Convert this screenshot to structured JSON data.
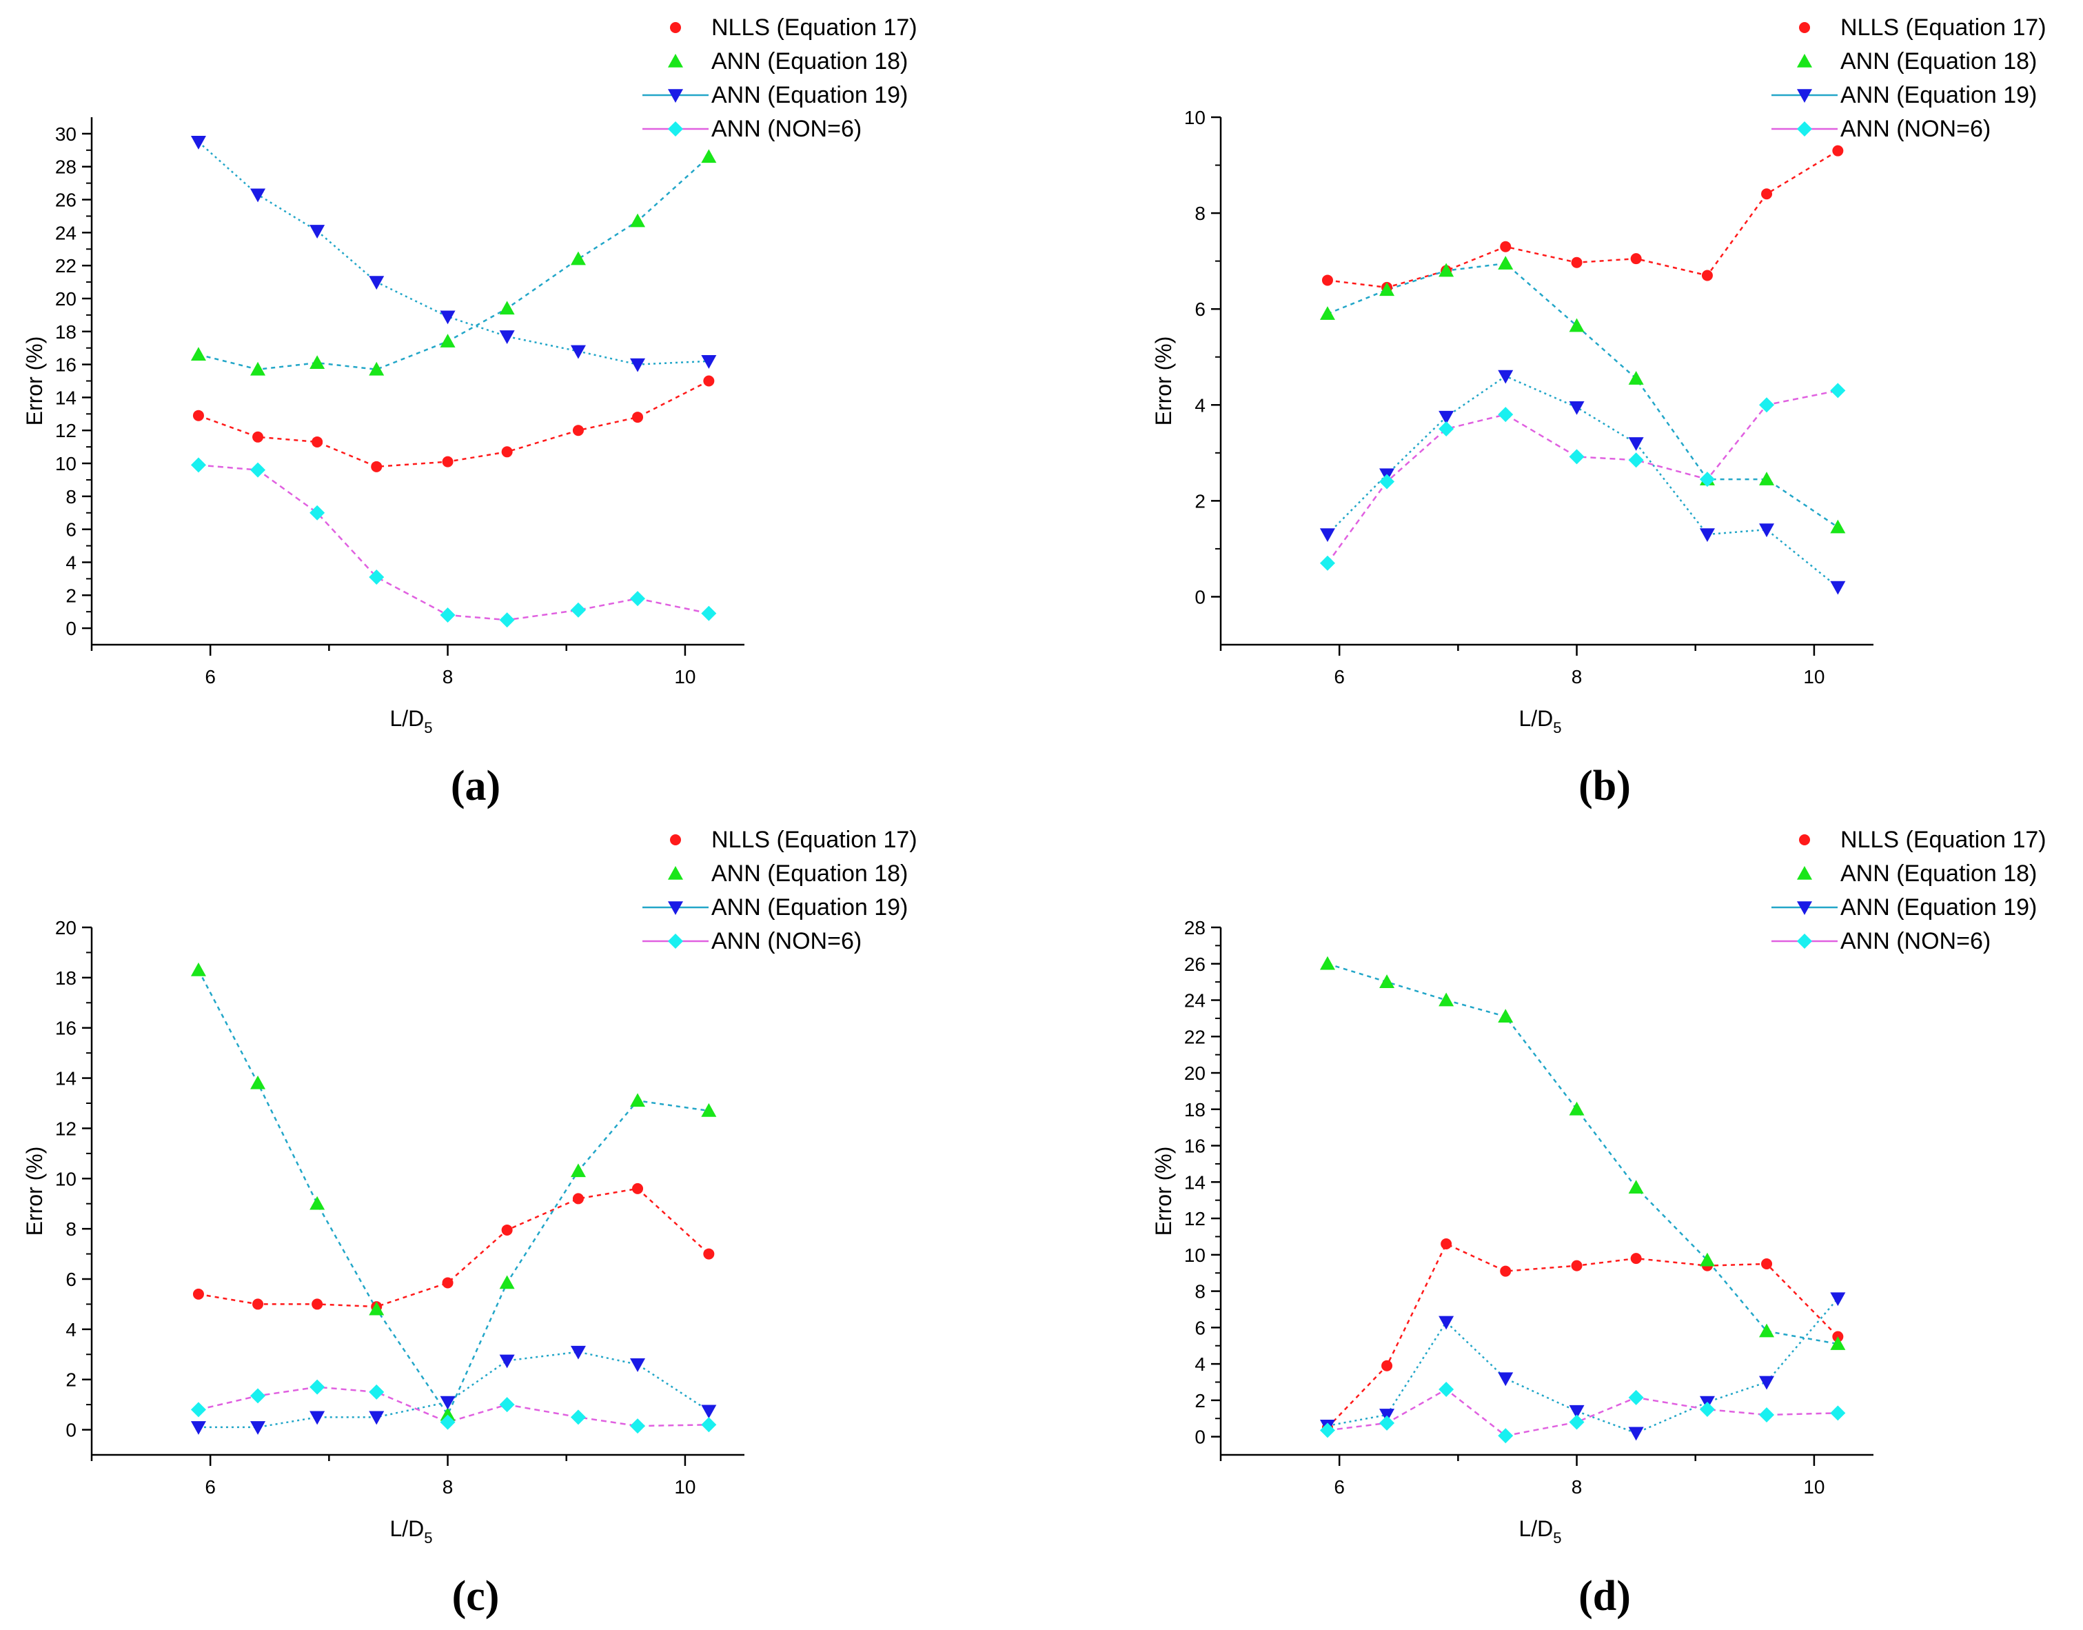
{
  "colors": {
    "nlls": "#ff1a1a",
    "ann18": "#19e619",
    "ann19": "#1a1ae6",
    "non6": "#19f0f0",
    "line_ann18_19": "#22a6c8",
    "line_non6": "#e060e0",
    "axis": "#000000"
  },
  "legend_labels": [
    "NLLS (Equation 17)",
    "ANN (Equation 18)",
    "ANN (Equation 19)",
    "ANN (NON=6)"
  ],
  "chart_data": [
    {
      "type": "line",
      "panel_label": "(a)",
      "xlabel": "L/D",
      "xlabel_sub": "5",
      "ylabel": "Error (%)",
      "xlim": [
        5,
        10.5
      ],
      "ylim": [
        -1,
        31
      ],
      "xticks": [
        6,
        8,
        10
      ],
      "yticks": [
        0,
        2,
        4,
        6,
        8,
        10,
        12,
        14,
        16,
        18,
        20,
        22,
        24,
        26,
        28,
        30
      ],
      "x": [
        5.9,
        6.4,
        6.9,
        7.4,
        8.0,
        8.5,
        9.1,
        9.6,
        10.2
      ],
      "series": [
        {
          "name": "NLLS (Equation 17)",
          "values": [
            12.9,
            11.6,
            11.3,
            9.8,
            10.1,
            10.7,
            12.0,
            12.8,
            15.0
          ]
        },
        {
          "name": "ANN (Equation 18)",
          "values": [
            16.6,
            15.7,
            16.1,
            15.7,
            17.4,
            19.4,
            22.4,
            24.7,
            28.6
          ]
        },
        {
          "name": "ANN (Equation 19)",
          "values": [
            29.5,
            26.3,
            24.1,
            21.0,
            18.9,
            17.7,
            16.8,
            16.0,
            16.2
          ]
        },
        {
          "name": "ANN (NON=6)",
          "values": [
            9.9,
            9.6,
            7.0,
            3.1,
            0.8,
            0.5,
            1.1,
            1.8,
            0.9
          ]
        }
      ]
    },
    {
      "type": "line",
      "panel_label": "(b)",
      "xlabel": "L/D",
      "xlabel_sub": "5",
      "ylabel": "Error (%)",
      "xlim": [
        5,
        10.5
      ],
      "ylim": [
        -1,
        10
      ],
      "xticks": [
        6,
        8,
        10
      ],
      "yticks": [
        0,
        2,
        4,
        6,
        8,
        10
      ],
      "x": [
        5.9,
        6.4,
        6.9,
        7.4,
        8.0,
        8.5,
        9.1,
        9.6,
        10.2
      ],
      "series": [
        {
          "name": "NLLS (Equation 17)",
          "values": [
            6.6,
            6.45,
            6.8,
            7.3,
            6.97,
            7.05,
            6.7,
            8.4,
            9.3
          ]
        },
        {
          "name": "ANN (Equation 18)",
          "values": [
            5.9,
            6.4,
            6.8,
            6.95,
            5.65,
            4.55,
            2.45,
            2.45,
            1.45
          ]
        },
        {
          "name": "ANN (Equation 19)",
          "values": [
            1.3,
            2.55,
            3.75,
            4.6,
            3.95,
            3.2,
            1.3,
            1.4,
            0.2
          ]
        },
        {
          "name": "ANN (NON=6)",
          "values": [
            0.7,
            2.4,
            3.5,
            3.8,
            2.92,
            2.85,
            2.45,
            4.0,
            4.3
          ]
        }
      ]
    },
    {
      "type": "line",
      "panel_label": "(c)",
      "xlabel": "L/D",
      "xlabel_sub": "5",
      "ylabel": "Error (%)",
      "xlim": [
        5,
        10.5
      ],
      "ylim": [
        -1,
        20
      ],
      "xticks": [
        6,
        8,
        10
      ],
      "yticks": [
        0,
        2,
        4,
        6,
        8,
        10,
        12,
        14,
        16,
        18,
        20
      ],
      "x": [
        5.9,
        6.4,
        6.9,
        7.4,
        8.0,
        8.5,
        9.1,
        9.6,
        10.2
      ],
      "series": [
        {
          "name": "NLLS (Equation 17)",
          "values": [
            5.4,
            5.0,
            5.0,
            4.9,
            5.85,
            7.95,
            9.2,
            9.6,
            7.0
          ]
        },
        {
          "name": "ANN (Equation 18)",
          "values": [
            18.3,
            13.8,
            9.0,
            4.8,
            0.6,
            5.85,
            10.3,
            13.1,
            12.7
          ]
        },
        {
          "name": "ANN (Equation 19)",
          "values": [
            0.1,
            0.1,
            0.5,
            0.5,
            1.1,
            2.75,
            3.1,
            2.6,
            0.75
          ]
        },
        {
          "name": "ANN (NON=6)",
          "values": [
            0.8,
            1.35,
            1.7,
            1.5,
            0.3,
            1.0,
            0.5,
            0.15,
            0.2
          ]
        }
      ]
    },
    {
      "type": "line",
      "panel_label": "(d)",
      "xlabel": "L/D",
      "xlabel_sub": "5",
      "ylabel": "Error (%)",
      "xlim": [
        5,
        10.5
      ],
      "ylim": [
        -1,
        28
      ],
      "xticks": [
        6,
        8,
        10
      ],
      "yticks": [
        0,
        2,
        4,
        6,
        8,
        10,
        12,
        14,
        16,
        18,
        20,
        22,
        24,
        26,
        28
      ],
      "x": [
        5.9,
        6.4,
        6.9,
        7.4,
        8.0,
        8.5,
        9.1,
        9.6,
        10.2
      ],
      "series": [
        {
          "name": "NLLS (Equation 17)",
          "values": [
            0.5,
            3.9,
            10.6,
            9.1,
            9.4,
            9.8,
            9.4,
            9.5,
            5.5
          ]
        },
        {
          "name": "ANN (Equation 18)",
          "values": [
            26.0,
            25.0,
            24.0,
            23.1,
            18.0,
            13.7,
            9.7,
            5.8,
            5.1
          ]
        },
        {
          "name": "ANN (Equation 19)",
          "values": [
            0.6,
            1.2,
            6.3,
            3.2,
            1.4,
            0.2,
            1.9,
            3.0,
            7.6
          ]
        },
        {
          "name": "ANN (NON=6)",
          "values": [
            0.35,
            0.75,
            2.6,
            0.05,
            0.8,
            2.15,
            1.5,
            1.2,
            1.3
          ]
        }
      ]
    }
  ]
}
